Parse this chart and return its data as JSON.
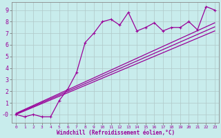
{
  "xlabel": "Windchill (Refroidissement éolien,°C)",
  "bg_color": "#c8ecec",
  "line_color": "#990099",
  "grid_color": "#b0c8c8",
  "xlim": [
    -0.5,
    23.5
  ],
  "ylim": [
    -0.7,
    9.7
  ],
  "xticks": [
    0,
    1,
    2,
    3,
    4,
    5,
    6,
    7,
    8,
    9,
    10,
    11,
    12,
    13,
    14,
    15,
    16,
    17,
    18,
    19,
    20,
    21,
    22,
    23
  ],
  "yticks": [
    0,
    1,
    2,
    3,
    4,
    5,
    6,
    7,
    8,
    9
  ],
  "ytick_labels": [
    "-0",
    "1",
    "2",
    "3",
    "4",
    "5",
    "6",
    "7",
    "8",
    "9"
  ],
  "data_x": [
    0,
    1,
    2,
    3,
    4,
    5,
    6,
    7,
    8,
    9,
    10,
    11,
    12,
    13,
    14,
    15,
    16,
    17,
    18,
    19,
    20,
    21,
    22,
    23
  ],
  "data_y": [
    0.0,
    -0.2,
    0.0,
    -0.2,
    -0.2,
    1.2,
    2.2,
    3.6,
    6.2,
    7.0,
    8.0,
    8.2,
    7.7,
    8.8,
    7.2,
    7.5,
    7.9,
    7.2,
    7.5,
    7.5,
    8.0,
    7.3,
    9.3,
    9.0
  ],
  "trend1_x": [
    0,
    23
  ],
  "trend1_y": [
    0.0,
    7.2
  ],
  "trend2_x": [
    0,
    23
  ],
  "trend2_y": [
    0.05,
    7.55
  ],
  "trend3_x": [
    0,
    23
  ],
  "trend3_y": [
    0.1,
    7.9
  ],
  "markersize": 2.5,
  "linewidth": 0.9
}
